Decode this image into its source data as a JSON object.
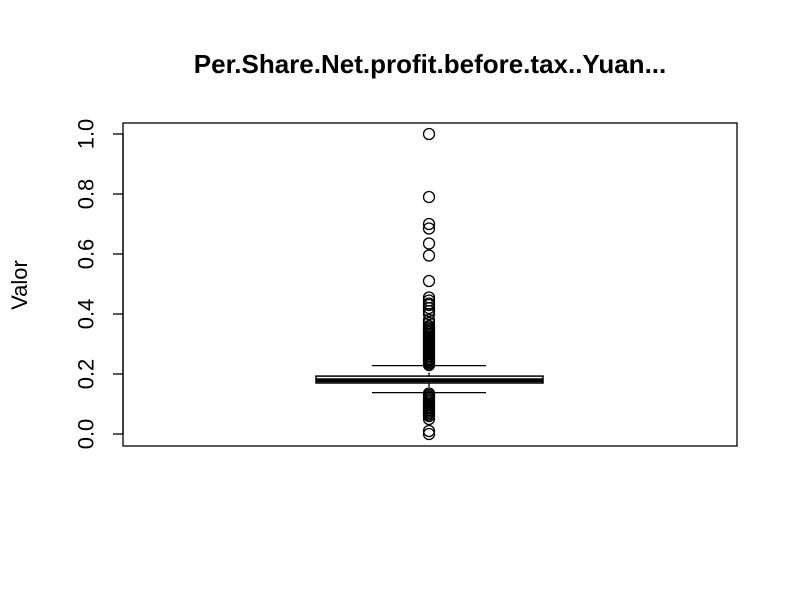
{
  "chart_data": {
    "type": "boxplot",
    "title": "Per.Share.Net.profit.before.tax..Yuan...",
    "xlabel": "",
    "ylabel": "Valor",
    "ylim": [
      0.0,
      1.0
    ],
    "yticks": [
      0.0,
      0.2,
      0.4,
      0.6,
      0.8,
      1.0
    ],
    "ytick_labels": [
      "0.0",
      "0.2",
      "0.4",
      "0.6",
      "0.8",
      "1.0"
    ],
    "grid": false,
    "legend": "none",
    "box": {
      "lower_whisker": 0.138,
      "q1": 0.17,
      "median": 0.179,
      "q3": 0.193,
      "upper_whisker": 0.228
    },
    "outliers_high": [
      1.0,
      0.79,
      0.7,
      0.685,
      0.635,
      0.595,
      0.51,
      0.455,
      0.445,
      0.435,
      0.43,
      0.42,
      0.41,
      0.4,
      0.38,
      0.37,
      0.36,
      0.355,
      0.35,
      0.345,
      0.34,
      0.335,
      0.33,
      0.325,
      0.32,
      0.315,
      0.31,
      0.305,
      0.3,
      0.295,
      0.29,
      0.285,
      0.28,
      0.275,
      0.27,
      0.265,
      0.26,
      0.255,
      0.25,
      0.245,
      0.24,
      0.235,
      0.23
    ],
    "outliers_low": [
      0.135,
      0.13,
      0.125,
      0.12,
      0.115,
      0.11,
      0.105,
      0.1,
      0.095,
      0.09,
      0.085,
      0.08,
      0.075,
      0.07,
      0.065,
      0.06,
      0.05,
      0.01,
      0.0
    ],
    "colors": {
      "stroke": "#000000",
      "background": "#ffffff"
    }
  }
}
